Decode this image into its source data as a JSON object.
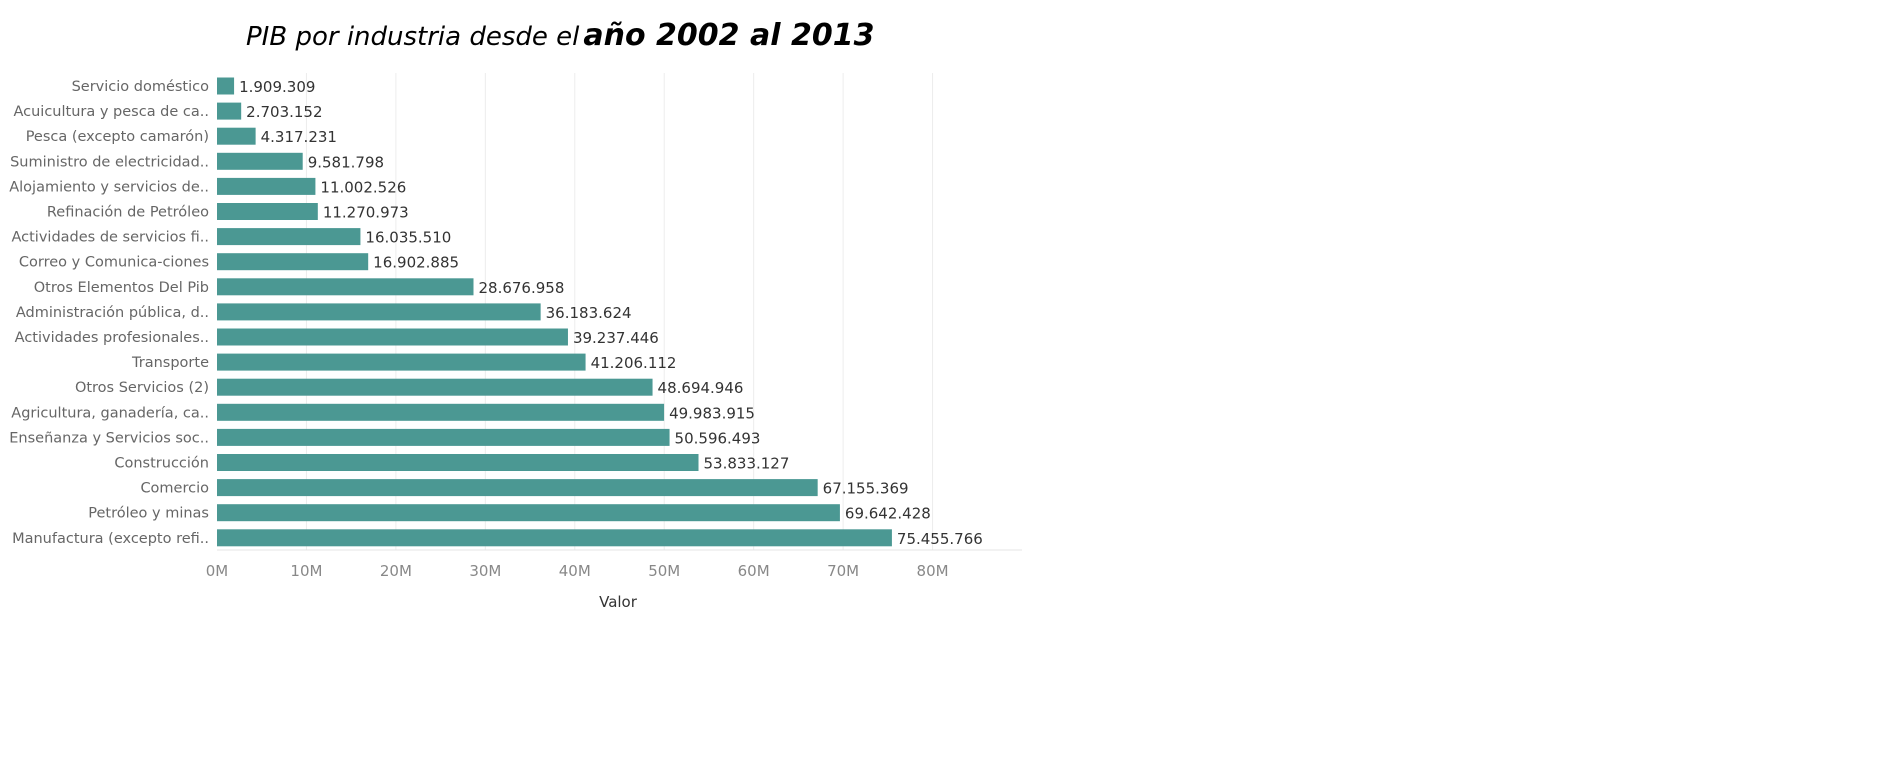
{
  "title": {
    "normal": "PIB por industria desde el",
    "bold": "año 2002 al 2013"
  },
  "chart_data": {
    "type": "bar",
    "orientation": "horizontal",
    "categories": [
      "Servicio doméstico",
      "Acuicultura y pesca de ca..",
      "Pesca (excepto camarón)",
      "Suministro de electricidad..",
      "Alojamiento y servicios de..",
      "Refinación de Petróleo",
      "Actividades de servicios fi..",
      "Correo y Comunica-ciones",
      "Otros Elementos Del Pib",
      "Administración pública, d..",
      "Actividades profesionales..",
      "Transporte",
      "Otros Servicios (2)",
      "Agricultura, ganadería, ca..",
      "Enseñanza  y Servicios soc..",
      "Construcción",
      "Comercio",
      "Petróleo y minas",
      "Manufactura (excepto refi.."
    ],
    "values": [
      1909309,
      2703152,
      4317231,
      9581798,
      11002526,
      11270973,
      16035510,
      16902885,
      28676958,
      36183624,
      39237446,
      41206112,
      48694946,
      49983915,
      50596493,
      53833127,
      67155369,
      69642428,
      75455766
    ],
    "value_labels": [
      "1.909.309",
      "2.703.152",
      "4.317.231",
      "9.581.798",
      "11.002.526",
      "11.270.973",
      "16.035.510",
      "16.902.885",
      "28.676.958",
      "36.183.624",
      "39.237.446",
      "41.206.112",
      "48.694.946",
      "49.983.915",
      "50.596.493",
      "53.833.127",
      "67.155.369",
      "69.642.428",
      "75.455.766"
    ],
    "xlabel": "Valor",
    "ylabel": "",
    "xlim": [
      0,
      90000000
    ],
    "x_ticks": [
      0,
      10000000,
      20000000,
      30000000,
      40000000,
      50000000,
      60000000,
      70000000,
      80000000
    ],
    "x_tick_labels": [
      "0M",
      "10M",
      "20M",
      "30M",
      "40M",
      "50M",
      "60M",
      "70M",
      "80M"
    ],
    "bar_color": "#4b9893",
    "grid": true,
    "legend": "none"
  }
}
